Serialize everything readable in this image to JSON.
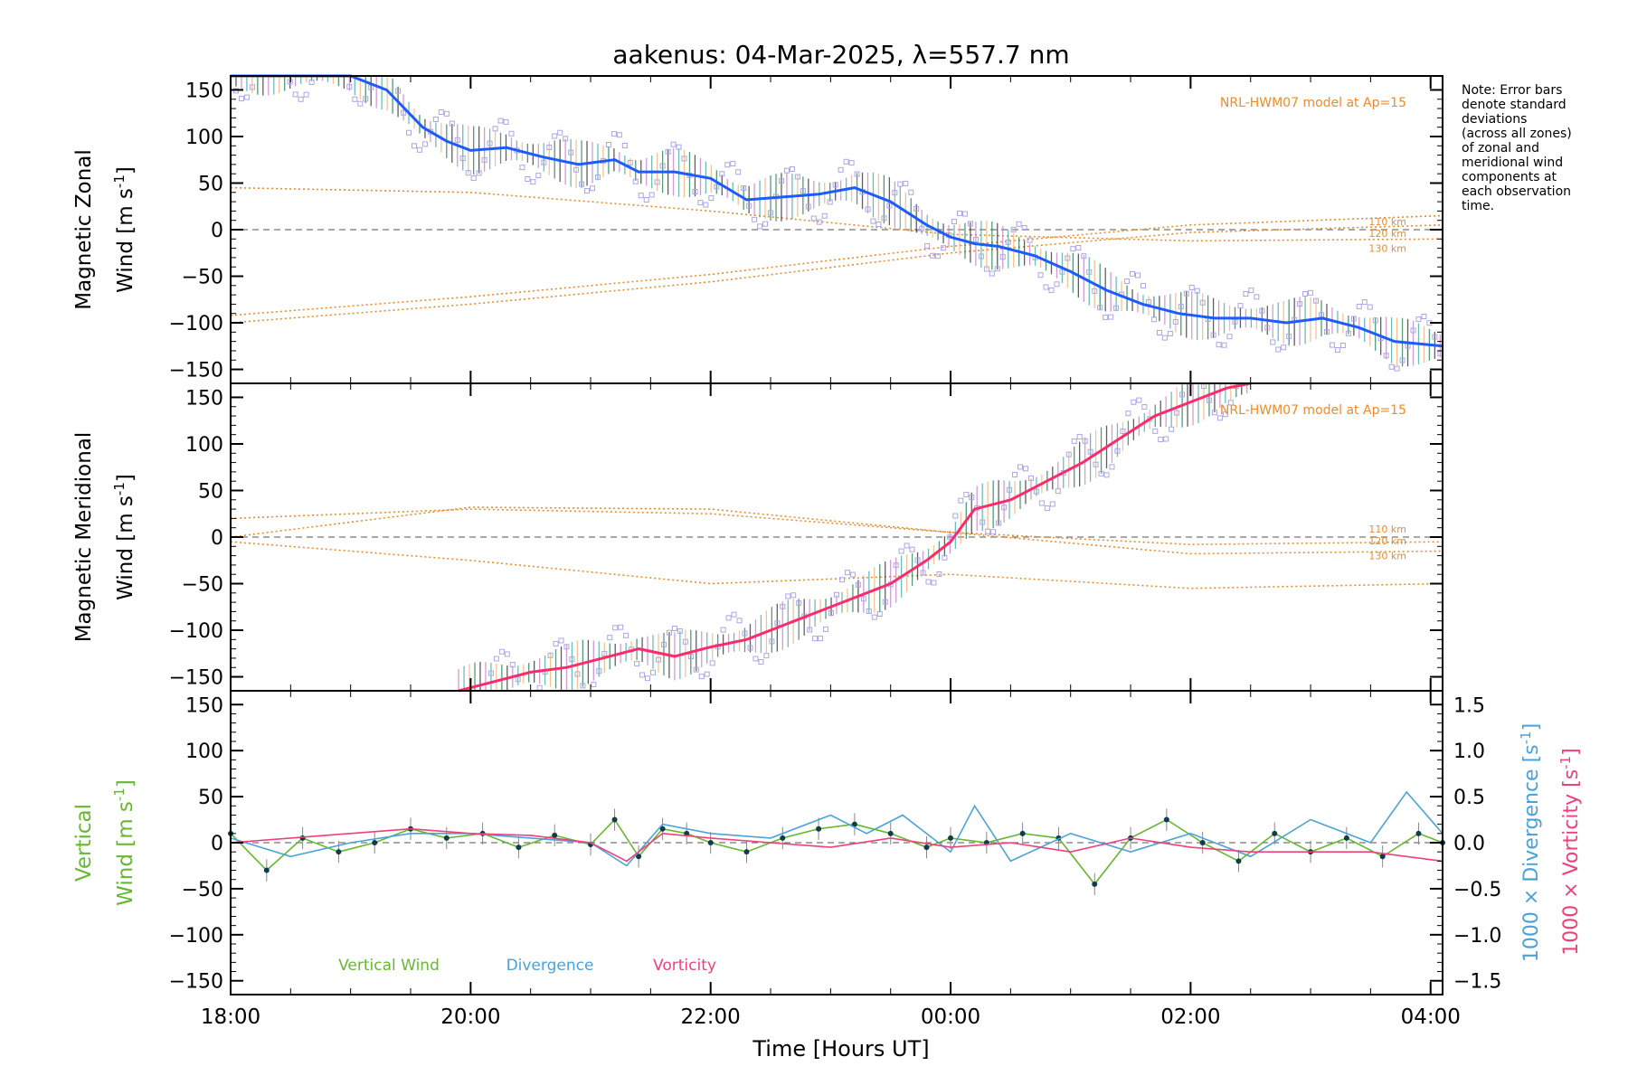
{
  "chart_data": {
    "type": "line",
    "title": "aakenus: 04-Mar-2025, λ=557.7 nm",
    "xlabel": "Time [Hours UT]",
    "x_range_hours": [
      18,
      28.1
    ],
    "x_ticks": [
      {
        "value": 18,
        "label": "18:00"
      },
      {
        "value": 20,
        "label": "20:00"
      },
      {
        "value": 22,
        "label": "22:00"
      },
      {
        "value": 24,
        "label": "00:00"
      },
      {
        "value": 26,
        "label": "02:00"
      },
      {
        "value": 28,
        "label": "04:00"
      }
    ],
    "y_ticks": [
      150,
      100,
      50,
      0,
      -50,
      -100,
      -150
    ],
    "y_tick_labels": [
      "150",
      "100",
      "50",
      "0",
      "−50",
      "−100",
      "−150"
    ],
    "y_range": [
      -165,
      165
    ],
    "note": [
      "Note: Error bars",
      "denote standard",
      "deviations",
      "(across all zones)",
      "of zonal and",
      "meridional wind",
      "components at",
      "each observation",
      "time."
    ],
    "model_label": "NRL-HWM07 model at Ap=15",
    "model_alt_labels": [
      "110 km",
      "120 km",
      "130 km"
    ],
    "panels": [
      {
        "name": "zonal",
        "ylabel_line1": "Magnetic Zonal",
        "ylabel_line2": "Wind [m s",
        "ylabel_sup": "-1",
        "ylabel_close": "]",
        "line_color": "#1a5cff",
        "series": {
          "name": "Magnetic Zonal Wind",
          "x": [
            18.0,
            18.5,
            19.0,
            19.3,
            19.6,
            19.8,
            20.0,
            20.3,
            20.6,
            20.9,
            21.2,
            21.4,
            21.7,
            22.0,
            22.3,
            22.6,
            22.9,
            23.2,
            23.5,
            23.8,
            24.0,
            24.2,
            24.4,
            24.7,
            25.0,
            25.3,
            25.6,
            25.9,
            26.2,
            26.5,
            26.8,
            27.1,
            27.4,
            27.7,
            28.1
          ],
          "values": [
            170,
            170,
            170,
            150,
            110,
            95,
            85,
            88,
            78,
            70,
            75,
            62,
            62,
            55,
            32,
            35,
            38,
            45,
            30,
            5,
            -8,
            -15,
            -18,
            -28,
            -45,
            -65,
            -80,
            -90,
            -95,
            -95,
            -100,
            -95,
            -105,
            -120,
            -125
          ]
        },
        "model_curves": [
          {
            "altitude": "110 km",
            "x": [
              18.0,
              20.0,
              22.0,
              24.0,
              26.0,
              28.1
            ],
            "values": [
              -92,
              -72,
              -48,
              -18,
              5,
              15
            ]
          },
          {
            "altitude": "120 km",
            "x": [
              18.0,
              20.0,
              22.0,
              24.0,
              26.0,
              28.1
            ],
            "values": [
              -100,
              -80,
              -56,
              -25,
              -3,
              5
            ]
          },
          {
            "altitude": "130 km",
            "x": [
              18.0,
              20.0,
              22.0,
              24.0,
              26.0,
              28.1
            ],
            "values": [
              45,
              40,
              20,
              -5,
              -12,
              -10
            ]
          }
        ]
      },
      {
        "name": "meridional",
        "ylabel_line1": "Magnetic Meridional",
        "ylabel_line2": "Wind [m s",
        "ylabel_sup": "-1",
        "ylabel_close": "]",
        "line_color": "#ff2a6d",
        "series": {
          "name": "Magnetic Meridional Wind",
          "x": [
            19.9,
            20.2,
            20.5,
            20.8,
            21.1,
            21.4,
            21.7,
            22.0,
            22.3,
            22.6,
            22.9,
            23.1,
            23.3,
            23.5,
            23.8,
            24.0,
            24.2,
            24.5,
            24.8,
            25.1,
            25.4,
            25.7,
            26.0,
            26.3,
            26.5
          ],
          "values": [
            -165,
            -155,
            -145,
            -140,
            -130,
            -120,
            -128,
            -118,
            -110,
            -95,
            -80,
            -70,
            -60,
            -50,
            -25,
            -5,
            30,
            40,
            60,
            80,
            105,
            130,
            145,
            160,
            165
          ]
        },
        "model_curves": [
          {
            "altitude": "110 km",
            "x": [
              18.0,
              20.0,
              22.0,
              24.0,
              26.0,
              28.1
            ],
            "values": [
              20,
              30,
              25,
              5,
              -8,
              -5
            ]
          },
          {
            "altitude": "120 km",
            "x": [
              18.0,
              20.0,
              22.0,
              24.0,
              26.0,
              28.1
            ],
            "values": [
              0,
              32,
              30,
              5,
              -18,
              -15
            ]
          },
          {
            "altitude": "130 km",
            "x": [
              18.0,
              20.0,
              22.0,
              24.0,
              26.0,
              28.1
            ],
            "values": [
              -5,
              -25,
              -50,
              -40,
              -55,
              -50
            ]
          }
        ]
      },
      {
        "name": "vertical",
        "ylabel_line1": "Vertical",
        "ylabel_line2": "Wind [m s",
        "ylabel_sup": "-1",
        "ylabel_close": "]",
        "right_axis": {
          "ticks": [
            1.5,
            1.0,
            0.5,
            0.0,
            -0.5,
            -1.0,
            -1.5
          ],
          "tick_labels": [
            "1.5",
            "1.0",
            "0.5",
            "0.0",
            "−0.5",
            "−1.0",
            "−1.5"
          ],
          "label_divergence": "1000 × Divergence [s",
          "label_vorticity": "1000 × Vorticity [s",
          "label_sup": "-1",
          "label_close": "]"
        },
        "legend": [
          "Vertical Wind",
          "Divergence",
          "Vorticity"
        ],
        "series": [
          {
            "name": "Vertical Wind",
            "color": "#66b830",
            "x": [
              18.0,
              18.3,
              18.6,
              18.9,
              19.2,
              19.5,
              19.8,
              20.1,
              20.4,
              20.7,
              21.0,
              21.2,
              21.4,
              21.6,
              21.8,
              22.0,
              22.3,
              22.6,
              22.9,
              23.2,
              23.5,
              23.8,
              24.0,
              24.3,
              24.6,
              24.9,
              25.2,
              25.5,
              25.8,
              26.1,
              26.4,
              26.7,
              27.0,
              27.3,
              27.6,
              27.9,
              28.1
            ],
            "values": [
              10,
              -30,
              5,
              -10,
              0,
              15,
              5,
              10,
              -5,
              8,
              -2,
              25,
              -15,
              15,
              10,
              0,
              -10,
              5,
              15,
              20,
              10,
              -5,
              5,
              0,
              10,
              5,
              -45,
              5,
              25,
              0,
              -20,
              10,
              -10,
              5,
              -15,
              10,
              0
            ]
          },
          {
            "name": "Divergence",
            "color": "#4aa3d8",
            "scale": "1000 × Divergence (right axis, ×100 on left scale)",
            "x": [
              18.0,
              18.5,
              19.0,
              19.5,
              20.0,
              20.5,
              21.0,
              21.3,
              21.6,
              22.0,
              22.5,
              23.0,
              23.3,
              23.6,
              24.0,
              24.2,
              24.5,
              25.0,
              25.5,
              26.0,
              26.5,
              27.0,
              27.5,
              27.8,
              28.1
            ],
            "values": [
              0.05,
              -0.15,
              0.0,
              0.1,
              0.1,
              0.05,
              0.0,
              -0.25,
              0.2,
              0.1,
              0.05,
              0.3,
              0.1,
              0.3,
              -0.1,
              0.4,
              -0.2,
              0.1,
              -0.1,
              0.1,
              -0.15,
              0.25,
              0.0,
              0.55,
              0.1
            ]
          },
          {
            "name": "Vorticity",
            "color": "#f0407a",
            "scale": "1000 × Vorticity (right axis, ×100 on left scale)",
            "x": [
              18.0,
              18.5,
              19.0,
              19.5,
              20.0,
              20.5,
              21.0,
              21.3,
              21.6,
              22.0,
              22.5,
              23.0,
              23.5,
              24.0,
              24.5,
              25.0,
              25.5,
              26.0,
              26.5,
              27.0,
              27.5,
              28.1
            ],
            "values": [
              0.0,
              0.05,
              0.1,
              0.15,
              0.1,
              0.08,
              0.0,
              -0.2,
              0.1,
              0.05,
              0.0,
              -0.05,
              0.05,
              -0.05,
              0.0,
              -0.1,
              0.05,
              -0.05,
              -0.1,
              -0.1,
              -0.1,
              -0.2
            ]
          }
        ]
      }
    ]
  }
}
